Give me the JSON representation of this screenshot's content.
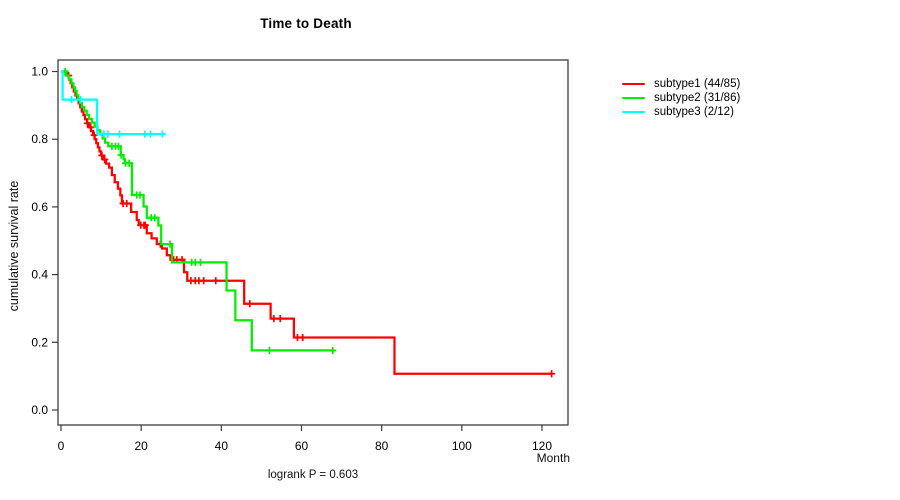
{
  "chart_data": {
    "type": "line",
    "variant": "kaplan-meier-step-curves",
    "title": "Time to Death",
    "xlabel": "Month",
    "ylabel": "cumulative survival rate",
    "annotation": "logrank P = 0.603",
    "xlim": [
      0,
      127
    ],
    "ylim": [
      0,
      1.04
    ],
    "x_ticks": [
      0,
      20,
      40,
      60,
      80,
      100,
      120
    ],
    "y_ticks": [
      1.0,
      0.8,
      0.6,
      0.4,
      0.2,
      0.0
    ],
    "grid": false,
    "legend_position": "right-outside",
    "series": [
      {
        "name": "subtype1 (44/85)",
        "color": "#ff0000",
        "start": [
          0,
          1.0
        ],
        "steps": [
          [
            1.4,
            0.988
          ],
          [
            2.0,
            0.976
          ],
          [
            2.4,
            0.965
          ],
          [
            2.8,
            0.953
          ],
          [
            3.2,
            0.941
          ],
          [
            3.6,
            0.929
          ],
          [
            4.0,
            0.918
          ],
          [
            4.4,
            0.906
          ],
          [
            4.8,
            0.894
          ],
          [
            5.2,
            0.882
          ],
          [
            5.6,
            0.871
          ],
          [
            6.0,
            0.859
          ],
          [
            6.5,
            0.847
          ],
          [
            7.0,
            0.835
          ],
          [
            7.5,
            0.824
          ],
          [
            8.0,
            0.812
          ],
          [
            8.4,
            0.8
          ],
          [
            8.8,
            0.788
          ],
          [
            9.2,
            0.776
          ],
          [
            9.6,
            0.764
          ],
          [
            10.0,
            0.752
          ],
          [
            10.6,
            0.74
          ],
          [
            11.2,
            0.728
          ],
          [
            12.0,
            0.716
          ],
          [
            12.7,
            0.694
          ],
          [
            13.4,
            0.673
          ],
          [
            14.2,
            0.654
          ],
          [
            14.8,
            0.634
          ],
          [
            15.2,
            0.61
          ],
          [
            17.5,
            0.585
          ],
          [
            18.9,
            0.561
          ],
          [
            19.4,
            0.546
          ],
          [
            21.4,
            0.522
          ],
          [
            22.6,
            0.507
          ],
          [
            23.9,
            0.49
          ],
          [
            25.2,
            0.477
          ],
          [
            26.4,
            0.457
          ],
          [
            27.3,
            0.444
          ],
          [
            30.7,
            0.407
          ],
          [
            31.5,
            0.382
          ],
          [
            45.7,
            0.314
          ],
          [
            52.3,
            0.27
          ],
          [
            58.1,
            0.214
          ],
          [
            83.2,
            0.107
          ]
        ],
        "end_time": 122.4,
        "censor_times": [
          1.9,
          6.6,
          7.4,
          8.3,
          10.2,
          10.9,
          15.5,
          16.4,
          19.9,
          20.7,
          21.0,
          24.8,
          28.1,
          28.9,
          30.2,
          32.4,
          33.5,
          34.4,
          35.6,
          38.6,
          47.1,
          53.1,
          54.7,
          59.0,
          60.3,
          122.4
        ]
      },
      {
        "name": "subtype2 (31/86)",
        "color": "#00ee00",
        "start": [
          0,
          1.0
        ],
        "steps": [
          [
            1.2,
            0.988
          ],
          [
            2.0,
            0.977
          ],
          [
            2.6,
            0.965
          ],
          [
            3.1,
            0.953
          ],
          [
            3.5,
            0.942
          ],
          [
            3.9,
            0.93
          ],
          [
            4.3,
            0.918
          ],
          [
            4.7,
            0.907
          ],
          [
            5.2,
            0.895
          ],
          [
            5.8,
            0.884
          ],
          [
            6.4,
            0.872
          ],
          [
            7.0,
            0.86
          ],
          [
            7.7,
            0.849
          ],
          [
            8.4,
            0.837
          ],
          [
            9.1,
            0.826
          ],
          [
            9.8,
            0.814
          ],
          [
            10.4,
            0.802
          ],
          [
            11.0,
            0.79
          ],
          [
            11.8,
            0.779
          ],
          [
            14.9,
            0.753
          ],
          [
            15.6,
            0.741
          ],
          [
            15.9,
            0.729
          ],
          [
            17.7,
            0.635
          ],
          [
            20.6,
            0.601
          ],
          [
            21.4,
            0.568
          ],
          [
            24.3,
            0.545
          ],
          [
            25.0,
            0.49
          ],
          [
            27.7,
            0.436
          ],
          [
            41.3,
            0.353
          ],
          [
            43.5,
            0.265
          ],
          [
            47.6,
            0.176
          ]
        ],
        "end_time": 68.0,
        "censor_times": [
          1.0,
          12.7,
          13.6,
          14.3,
          15.0,
          16.1,
          17.0,
          18.9,
          19.7,
          22.5,
          23.4,
          27.2,
          32.6,
          33.5,
          34.8,
          52.0,
          67.8
        ]
      },
      {
        "name": "subtype3 (2/12)",
        "color": "#00ffff",
        "start": [
          0,
          1.0
        ],
        "steps": [
          [
            0.4,
            0.917
          ],
          [
            9.0,
            0.815
          ]
        ],
        "end_time": 25.5,
        "censor_times": [
          2.6,
          4.9,
          10.7,
          11.7,
          14.6,
          20.9,
          22.3,
          25.3
        ]
      }
    ]
  }
}
